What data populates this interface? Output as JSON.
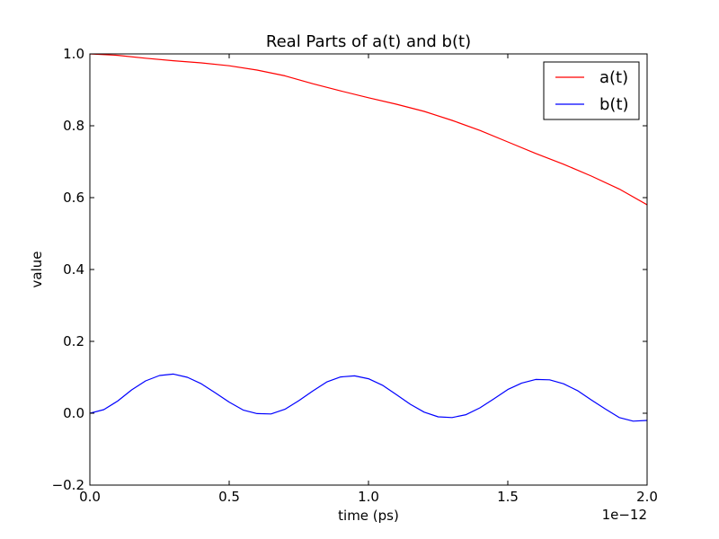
{
  "chart_data": {
    "type": "line",
    "title": "Real Parts of a(t) and b(t)",
    "xlabel": "time (ps)",
    "ylabel": "value",
    "x_offset_text": "1e−12",
    "xlim": [
      0.0,
      2.0
    ],
    "ylim": [
      -0.2,
      1.0
    ],
    "xticks": [
      0.0,
      0.5,
      1.0,
      1.5,
      2.0
    ],
    "xtick_labels": [
      "0.0",
      "0.5",
      "1.0",
      "1.5",
      "2.0"
    ],
    "yticks": [
      -0.2,
      0.0,
      0.2,
      0.4,
      0.6,
      0.8,
      1.0
    ],
    "ytick_labels": [
      "−0.2",
      "0.0",
      "0.2",
      "0.4",
      "0.6",
      "0.8",
      "1.0"
    ],
    "grid": false,
    "legend_position": "top-right",
    "series": [
      {
        "name": "a(t)",
        "color": "#ff0000",
        "x": [
          0.0,
          0.1,
          0.2,
          0.3,
          0.4,
          0.5,
          0.6,
          0.7,
          0.8,
          0.9,
          1.0,
          1.1,
          1.2,
          1.3,
          1.4,
          1.5,
          1.6,
          1.7,
          1.8,
          1.9,
          2.0
        ],
        "y": [
          1.0,
          0.996,
          0.988,
          0.981,
          0.975,
          0.967,
          0.955,
          0.939,
          0.917,
          0.897,
          0.878,
          0.86,
          0.84,
          0.815,
          0.787,
          0.755,
          0.723,
          0.693,
          0.66,
          0.624,
          0.58
        ]
      },
      {
        "name": "b(t)",
        "color": "#0000ff",
        "x": [
          0.0,
          0.05,
          0.1,
          0.15,
          0.2,
          0.25,
          0.3,
          0.35,
          0.4,
          0.45,
          0.5,
          0.55,
          0.6,
          0.65,
          0.7,
          0.75,
          0.8,
          0.85,
          0.9,
          0.95,
          1.0,
          1.05,
          1.1,
          1.15,
          1.2,
          1.25,
          1.3,
          1.35,
          1.4,
          1.45,
          1.5,
          1.55,
          1.6,
          1.65,
          1.7,
          1.75,
          1.8,
          1.85,
          1.9,
          1.95,
          2.0
        ],
        "y": [
          0.0,
          0.01,
          0.034,
          0.065,
          0.09,
          0.105,
          0.109,
          0.1,
          0.082,
          0.057,
          0.031,
          0.009,
          -0.001,
          -0.002,
          0.011,
          0.035,
          0.062,
          0.087,
          0.101,
          0.104,
          0.096,
          0.078,
          0.052,
          0.025,
          0.003,
          -0.01,
          -0.012,
          -0.004,
          0.015,
          0.04,
          0.066,
          0.084,
          0.094,
          0.093,
          0.082,
          0.063,
          0.037,
          0.012,
          -0.012,
          -0.022,
          -0.02
        ]
      }
    ]
  }
}
